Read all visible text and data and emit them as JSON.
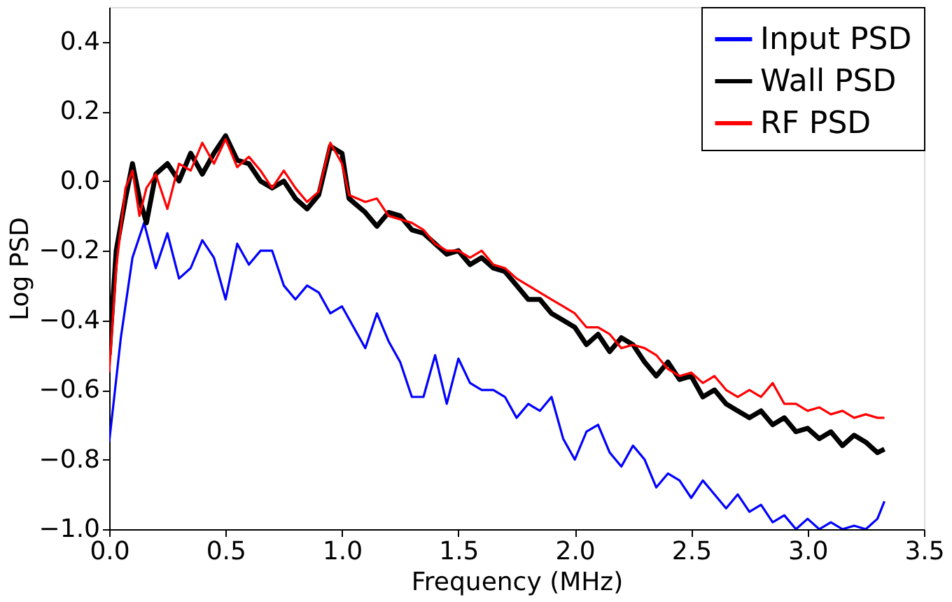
{
  "chart_data": {
    "type": "line",
    "xlabel": "Frequency (MHz)",
    "ylabel": "Log PSD",
    "xlim": [
      0.0,
      3.5
    ],
    "ylim": [
      -1.0,
      0.5
    ],
    "xticks": [
      {
        "value": 0.0,
        "label": "0.0"
      },
      {
        "value": 0.5,
        "label": "0.5"
      },
      {
        "value": 1.0,
        "label": "1.0"
      },
      {
        "value": 1.5,
        "label": "1.5"
      },
      {
        "value": 2.0,
        "label": "2.0"
      },
      {
        "value": 2.5,
        "label": "2.5"
      },
      {
        "value": 3.0,
        "label": "3.0"
      },
      {
        "value": 3.5,
        "label": "3.5"
      }
    ],
    "yticks": [
      {
        "value": -1.0,
        "label": "−1.0"
      },
      {
        "value": -0.8,
        "label": "−0.8"
      },
      {
        "value": -0.6,
        "label": "−0.6"
      },
      {
        "value": -0.4,
        "label": "−0.4"
      },
      {
        "value": -0.2,
        "label": "−0.2"
      },
      {
        "value": 0.0,
        "label": "0.0"
      },
      {
        "value": 0.2,
        "label": "0.2"
      },
      {
        "value": 0.4,
        "label": "0.4"
      }
    ],
    "legend": "top right",
    "grid": false,
    "marker": "none",
    "line_style": "solid",
    "series": [
      {
        "name": "Input PSD",
        "color": "#0000ff",
        "x": [
          0.0,
          0.05,
          0.1,
          0.15,
          0.2,
          0.25,
          0.3,
          0.35,
          0.4,
          0.45,
          0.5,
          0.55,
          0.6,
          0.65,
          0.7,
          0.75,
          0.8,
          0.85,
          0.9,
          0.95,
          1.0,
          1.05,
          1.1,
          1.15,
          1.2,
          1.25,
          1.3,
          1.35,
          1.4,
          1.45,
          1.5,
          1.55,
          1.6,
          1.65,
          1.7,
          1.75,
          1.8,
          1.85,
          1.9,
          1.95,
          2.0,
          2.05,
          2.1,
          2.15,
          2.2,
          2.25,
          2.3,
          2.35,
          2.4,
          2.45,
          2.5,
          2.55,
          2.6,
          2.65,
          2.7,
          2.75,
          2.8,
          2.85,
          2.9,
          2.95,
          3.0,
          3.05,
          3.1,
          3.15,
          3.2,
          3.25,
          3.3,
          3.33
        ],
        "values": [
          -0.75,
          -0.45,
          -0.22,
          -0.12,
          -0.25,
          -0.15,
          -0.28,
          -0.25,
          -0.17,
          -0.22,
          -0.34,
          -0.18,
          -0.24,
          -0.2,
          -0.2,
          -0.3,
          -0.34,
          -0.3,
          -0.32,
          -0.38,
          -0.36,
          -0.42,
          -0.48,
          -0.38,
          -0.46,
          -0.52,
          -0.62,
          -0.62,
          -0.5,
          -0.64,
          -0.51,
          -0.58,
          -0.6,
          -0.6,
          -0.62,
          -0.68,
          -0.64,
          -0.66,
          -0.62,
          -0.74,
          -0.8,
          -0.72,
          -0.7,
          -0.78,
          -0.82,
          -0.76,
          -0.8,
          -0.88,
          -0.84,
          -0.86,
          -0.91,
          -0.86,
          -0.9,
          -0.94,
          -0.9,
          -0.95,
          -0.93,
          -0.98,
          -0.96,
          -1.0,
          -0.97,
          -1.0,
          -0.98,
          -1.0,
          -0.99,
          -1.0,
          -0.97,
          -0.92
        ]
      },
      {
        "name": "Wall PSD",
        "color": "#000000",
        "x": [
          0.0,
          0.03,
          0.07,
          0.1,
          0.13,
          0.16,
          0.2,
          0.25,
          0.3,
          0.35,
          0.4,
          0.45,
          0.5,
          0.55,
          0.6,
          0.65,
          0.7,
          0.75,
          0.8,
          0.85,
          0.9,
          0.95,
          1.0,
          1.03,
          1.1,
          1.15,
          1.2,
          1.25,
          1.3,
          1.35,
          1.4,
          1.45,
          1.5,
          1.55,
          1.6,
          1.65,
          1.7,
          1.75,
          1.8,
          1.85,
          1.9,
          1.95,
          2.0,
          2.05,
          2.1,
          2.15,
          2.2,
          2.25,
          2.3,
          2.35,
          2.4,
          2.45,
          2.5,
          2.55,
          2.6,
          2.65,
          2.7,
          2.75,
          2.8,
          2.85,
          2.9,
          2.95,
          3.0,
          3.05,
          3.1,
          3.15,
          3.2,
          3.25,
          3.3,
          3.33
        ],
        "values": [
          -0.5,
          -0.2,
          -0.05,
          0.05,
          -0.05,
          -0.12,
          0.02,
          0.05,
          0.0,
          0.08,
          0.02,
          0.08,
          0.13,
          0.06,
          0.05,
          0.0,
          -0.02,
          0.0,
          -0.05,
          -0.08,
          -0.04,
          0.1,
          0.08,
          -0.05,
          -0.09,
          -0.13,
          -0.09,
          -0.1,
          -0.14,
          -0.15,
          -0.18,
          -0.21,
          -0.2,
          -0.24,
          -0.22,
          -0.25,
          -0.26,
          -0.3,
          -0.34,
          -0.34,
          -0.38,
          -0.4,
          -0.42,
          -0.47,
          -0.44,
          -0.49,
          -0.45,
          -0.47,
          -0.52,
          -0.56,
          -0.52,
          -0.57,
          -0.56,
          -0.62,
          -0.6,
          -0.64,
          -0.66,
          -0.68,
          -0.66,
          -0.7,
          -0.68,
          -0.72,
          -0.71,
          -0.74,
          -0.72,
          -0.76,
          -0.73,
          -0.75,
          -0.78,
          -0.77
        ]
      },
      {
        "name": "RF PSD",
        "color": "#ff0000",
        "x": [
          0.0,
          0.03,
          0.07,
          0.1,
          0.13,
          0.16,
          0.2,
          0.25,
          0.3,
          0.35,
          0.4,
          0.45,
          0.5,
          0.55,
          0.6,
          0.65,
          0.7,
          0.75,
          0.8,
          0.85,
          0.9,
          0.95,
          1.0,
          1.03,
          1.1,
          1.15,
          1.2,
          1.25,
          1.3,
          1.35,
          1.4,
          1.45,
          1.5,
          1.55,
          1.6,
          1.65,
          1.7,
          1.75,
          1.8,
          1.85,
          1.9,
          1.95,
          2.0,
          2.05,
          2.1,
          2.15,
          2.2,
          2.25,
          2.3,
          2.35,
          2.4,
          2.45,
          2.5,
          2.55,
          2.6,
          2.65,
          2.7,
          2.75,
          2.8,
          2.85,
          2.9,
          2.95,
          3.0,
          3.05,
          3.1,
          3.15,
          3.2,
          3.25,
          3.3,
          3.33
        ],
        "values": [
          -0.55,
          -0.25,
          -0.02,
          0.03,
          -0.1,
          -0.02,
          0.02,
          -0.08,
          0.05,
          0.03,
          0.11,
          0.05,
          0.12,
          0.04,
          0.07,
          0.03,
          -0.02,
          0.03,
          -0.02,
          -0.06,
          -0.03,
          0.11,
          0.05,
          -0.04,
          -0.06,
          -0.05,
          -0.1,
          -0.11,
          -0.12,
          -0.14,
          -0.18,
          -0.2,
          -0.2,
          -0.22,
          -0.2,
          -0.24,
          -0.25,
          -0.28,
          -0.3,
          -0.32,
          -0.34,
          -0.36,
          -0.38,
          -0.42,
          -0.42,
          -0.44,
          -0.48,
          -0.47,
          -0.48,
          -0.5,
          -0.54,
          -0.56,
          -0.55,
          -0.58,
          -0.56,
          -0.6,
          -0.62,
          -0.6,
          -0.62,
          -0.58,
          -0.64,
          -0.64,
          -0.66,
          -0.65,
          -0.67,
          -0.66,
          -0.68,
          -0.67,
          -0.68,
          -0.68
        ]
      }
    ]
  }
}
